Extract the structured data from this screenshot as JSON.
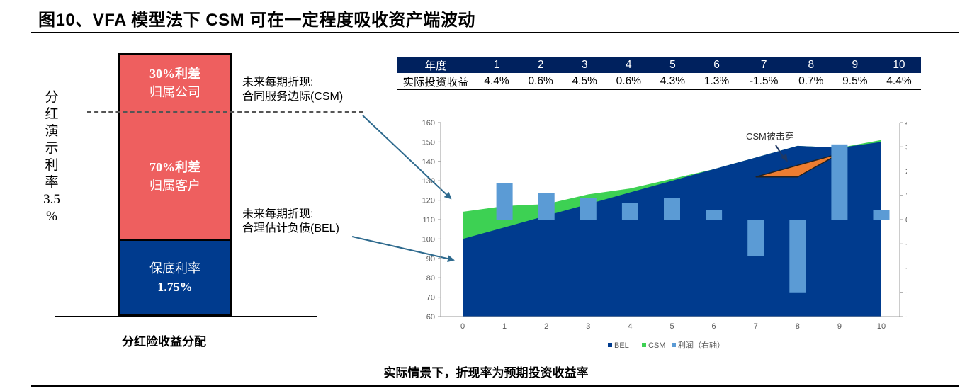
{
  "figure_title": "图10、VFA 模型法下 CSM 可在一定程度吸收资产端波动",
  "left_diagram": {
    "vertical_label": [
      "分",
      "红",
      "演",
      "示",
      "利",
      "率",
      "3.5",
      "%"
    ],
    "segments": [
      {
        "line1": "30%利差",
        "line2": "归属公司",
        "color": "#ee5f5f",
        "share": 0.3
      },
      {
        "line1": "70%利差",
        "line2": "归属客户",
        "color": "#ee5f5f",
        "share": 0.7
      },
      {
        "line1": "保底利率",
        "line2": "1.75%",
        "color": "#003b8e"
      }
    ],
    "caption": "分红险收益分配",
    "note_csm": {
      "line1": "未来每期折现:",
      "line2": "合同服务边际(CSM)"
    },
    "note_bel": {
      "line1": "未来每期折现:",
      "line2": "合理估计负债(BEL)"
    }
  },
  "table": {
    "header_label": "年度",
    "years": [
      "1",
      "2",
      "3",
      "4",
      "5",
      "6",
      "7",
      "8",
      "9",
      "10"
    ],
    "row_label": "实际投资收益",
    "returns": [
      "4.4%",
      "0.6%",
      "4.5%",
      "0.6%",
      "4.3%",
      "1.3%",
      "-1.5%",
      "0.7%",
      "9.5%",
      "4.4%"
    ]
  },
  "chart_data": {
    "type": "area",
    "x": [
      0,
      1,
      2,
      3,
      4,
      5,
      6,
      7,
      8,
      9,
      10
    ],
    "series": [
      {
        "name": "BEL",
        "kind": "area",
        "axis": "left",
        "color": "#003b8e",
        "values": [
          100,
          106,
          112,
          118,
          124,
          130,
          136,
          142,
          148,
          147,
          150
        ]
      },
      {
        "name": "CSM",
        "kind": "area",
        "axis": "left",
        "color": "#3dd153",
        "values": [
          114,
          117,
          118,
          123,
          126,
          131,
          133,
          132,
          132,
          144,
          151
        ]
      },
      {
        "name": "利润（右轴）",
        "kind": "bar",
        "axis": "right",
        "color": "#5b9bd5",
        "values": [
          null,
          1.5,
          1.1,
          0.9,
          0.7,
          0.9,
          0.4,
          -1.5,
          -3.0,
          3.1,
          0.4
        ]
      }
    ],
    "ylim_left": [
      60,
      160
    ],
    "yticks_left": [
      60,
      70,
      80,
      90,
      100,
      110,
      120,
      130,
      140,
      150,
      160
    ],
    "ylim_right": [
      -4,
      4
    ],
    "yticks_right": [
      -4,
      -3,
      -2,
      -1,
      0,
      1,
      2,
      3,
      4
    ],
    "legend": [
      "BEL",
      "CSM",
      "利润（右轴）"
    ],
    "legend_position": "bottom",
    "annotation": {
      "text": "CSM被击穿",
      "points": [
        [
          7,
          132
        ],
        [
          8,
          132
        ],
        [
          9,
          144
        ]
      ],
      "color": "#ed7d31"
    },
    "grid": false
  },
  "bottom_caption": "实际情景下，折现率为预期投资收益率"
}
